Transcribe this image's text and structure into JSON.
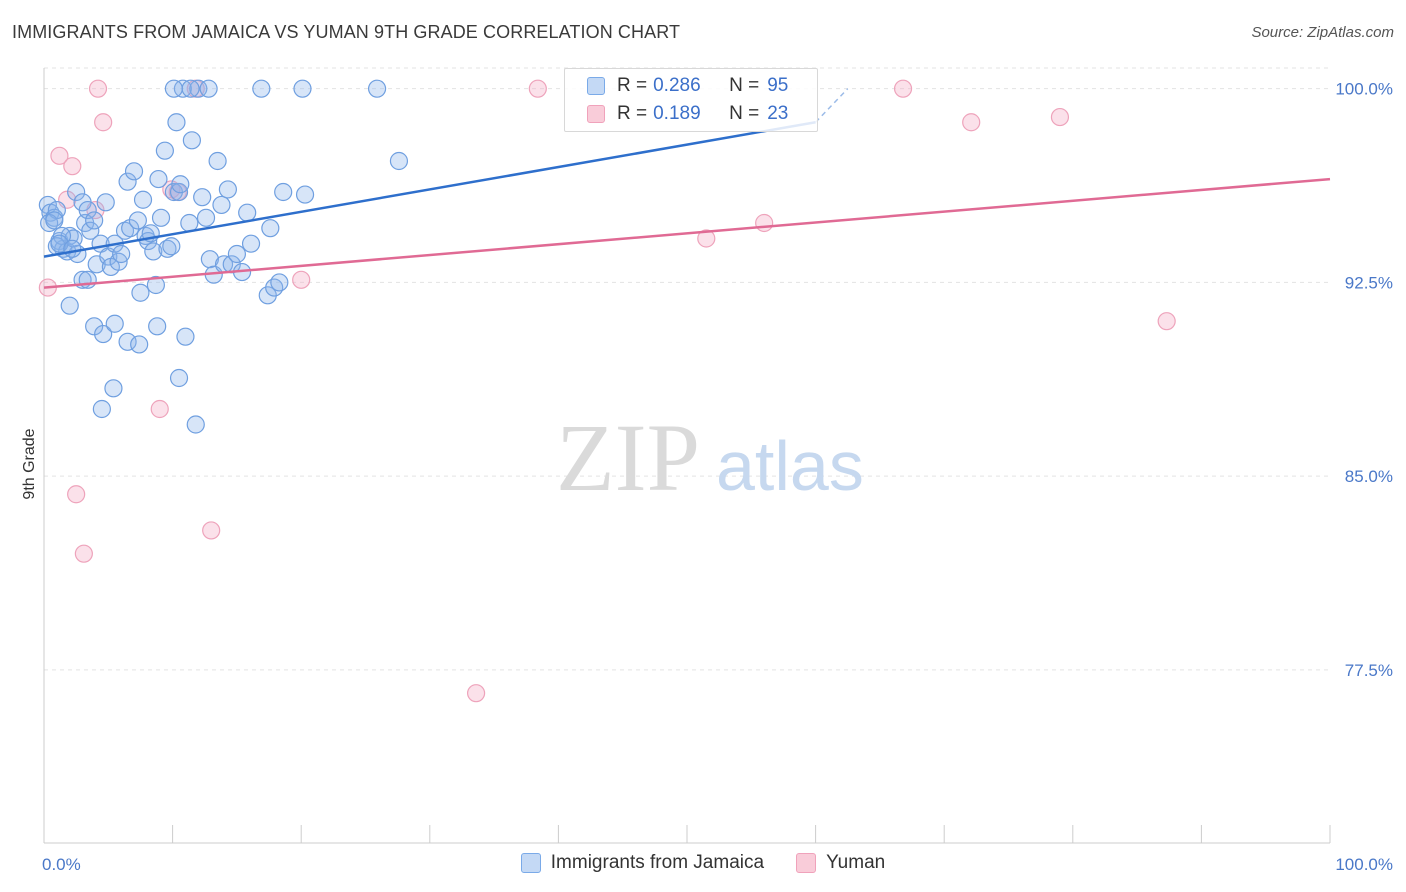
{
  "header": {
    "title": "IMMIGRANTS FROM JAMAICA VS YUMAN 9TH GRADE CORRELATION CHART",
    "source": "Source: ZipAtlas.com"
  },
  "watermark": {
    "part1": "ZIP",
    "part2": "atlas"
  },
  "legend": {
    "rows": [
      {
        "r_label": "R =",
        "r_value": "0.286",
        "n_label": "N =",
        "n_value": "95"
      },
      {
        "r_label": "R =",
        "r_value": "0.189",
        "n_label": "N =",
        "n_value": "23"
      }
    ]
  },
  "bottom_legend": {
    "items": [
      {
        "label": "Immigrants from Jamaica"
      },
      {
        "label": "Yuman"
      }
    ]
  },
  "chart_data": {
    "type": "scatter",
    "title": "IMMIGRANTS FROM JAMAICA VS YUMAN 9TH GRADE CORRELATION CHART",
    "xlabel": "",
    "ylabel": "9th Grade",
    "xlim": [
      0,
      100
    ],
    "ylim": [
      70.8,
      100.8
    ],
    "x_tick_labels": [
      "0.0%",
      "100.0%"
    ],
    "y_ticks": [
      {
        "value": 100.0,
        "label": "100.0%"
      },
      {
        "value": 92.5,
        "label": "92.5%"
      },
      {
        "value": 85.0,
        "label": "85.0%"
      },
      {
        "value": 77.5,
        "label": "77.5%"
      }
    ],
    "colors": {
      "series1": "#7aaae8",
      "series1_line": "#2e6fcc",
      "series2": "#f0a2bb",
      "series2_line": "#e06a94"
    },
    "series": [
      {
        "name": "Immigrants from Jamaica",
        "R": 0.286,
        "N": 95,
        "trend": {
          "x0": 0,
          "y0": 93.5,
          "x1": 60,
          "y1": 98.7,
          "dashed_to_x": 62.5,
          "dashed_to_y": 100.0
        },
        "points": [
          [
            0.3,
            95.5
          ],
          [
            0.5,
            95.2
          ],
          [
            0.8,
            95.0
          ],
          [
            1.0,
            95.3
          ],
          [
            0.4,
            94.8
          ],
          [
            1.2,
            94.1
          ],
          [
            0.8,
            94.9
          ],
          [
            1.5,
            93.8
          ],
          [
            1.8,
            93.7
          ],
          [
            2.0,
            94.3
          ],
          [
            2.3,
            94.2
          ],
          [
            1.4,
            94.3
          ],
          [
            2.5,
            96.0
          ],
          [
            3.0,
            95.6
          ],
          [
            3.2,
            94.8
          ],
          [
            3.4,
            95.3
          ],
          [
            3.6,
            94.5
          ],
          [
            3.9,
            94.9
          ],
          [
            2.6,
            93.6
          ],
          [
            3.0,
            92.6
          ],
          [
            3.4,
            92.6
          ],
          [
            4.1,
            93.2
          ],
          [
            4.4,
            94.0
          ],
          [
            4.8,
            95.6
          ],
          [
            5.0,
            93.5
          ],
          [
            5.2,
            93.1
          ],
          [
            5.5,
            94.0
          ],
          [
            5.8,
            93.3
          ],
          [
            6.0,
            93.6
          ],
          [
            6.3,
            94.5
          ],
          [
            6.5,
            96.4
          ],
          [
            6.7,
            94.6
          ],
          [
            7.0,
            96.8
          ],
          [
            7.3,
            94.9
          ],
          [
            7.5,
            92.1
          ],
          [
            7.7,
            95.7
          ],
          [
            7.9,
            94.3
          ],
          [
            8.1,
            94.1
          ],
          [
            8.3,
            94.4
          ],
          [
            8.5,
            93.7
          ],
          [
            8.7,
            92.4
          ],
          [
            8.9,
            96.5
          ],
          [
            9.1,
            95.0
          ],
          [
            9.4,
            97.6
          ],
          [
            9.6,
            93.8
          ],
          [
            9.9,
            93.9
          ],
          [
            10.1,
            96.0
          ],
          [
            10.3,
            98.7
          ],
          [
            10.5,
            96.0
          ],
          [
            10.8,
            100.0
          ],
          [
            11.0,
            90.4
          ],
          [
            11.3,
            94.8
          ],
          [
            11.5,
            98.0
          ],
          [
            11.8,
            87.0
          ],
          [
            12.0,
            100.0
          ],
          [
            12.3,
            95.8
          ],
          [
            12.6,
            95.0
          ],
          [
            12.9,
            93.4
          ],
          [
            13.2,
            92.8
          ],
          [
            13.5,
            97.2
          ],
          [
            13.8,
            95.5
          ],
          [
            14.0,
            93.2
          ],
          [
            14.3,
            96.1
          ],
          [
            14.6,
            93.2
          ],
          [
            15.0,
            93.6
          ],
          [
            15.4,
            92.9
          ],
          [
            15.8,
            95.2
          ],
          [
            16.1,
            94.0
          ],
          [
            16.9,
            100.0
          ],
          [
            17.4,
            92.0
          ],
          [
            17.6,
            94.6
          ],
          [
            17.9,
            92.3
          ],
          [
            18.3,
            92.5
          ],
          [
            18.6,
            96.0
          ],
          [
            20.1,
            100.0
          ],
          [
            25.9,
            100.0
          ],
          [
            27.6,
            97.2
          ],
          [
            10.1,
            100.0
          ],
          [
            3.9,
            90.8
          ],
          [
            4.6,
            90.5
          ],
          [
            6.5,
            90.2
          ],
          [
            7.4,
            90.1
          ],
          [
            8.8,
            90.8
          ],
          [
            5.5,
            90.9
          ],
          [
            5.4,
            88.4
          ],
          [
            4.5,
            87.6
          ],
          [
            2.0,
            91.6
          ],
          [
            1.0,
            93.9
          ],
          [
            1.2,
            94.0
          ],
          [
            2.2,
            93.8
          ],
          [
            10.5,
            88.8
          ],
          [
            10.6,
            96.3
          ],
          [
            11.4,
            100.0
          ],
          [
            12.8,
            100.0
          ],
          [
            20.3,
            95.9
          ]
        ]
      },
      {
        "name": "Yuman",
        "R": 0.189,
        "N": 23,
        "trend": {
          "x0": 0,
          "y0": 92.3,
          "x1": 100,
          "y1": 96.5
        },
        "points": [
          [
            0.3,
            92.3
          ],
          [
            1.2,
            97.4
          ],
          [
            1.8,
            95.7
          ],
          [
            2.2,
            97.0
          ],
          [
            2.5,
            84.3
          ],
          [
            3.1,
            82.0
          ],
          [
            4.0,
            95.3
          ],
          [
            4.2,
            100.0
          ],
          [
            4.6,
            98.7
          ],
          [
            9.0,
            87.6
          ],
          [
            9.9,
            96.1
          ],
          [
            10.4,
            96.0
          ],
          [
            11.8,
            100.0
          ],
          [
            13.0,
            82.9
          ],
          [
            20.0,
            92.6
          ],
          [
            33.6,
            76.6
          ],
          [
            38.4,
            100.0
          ],
          [
            51.5,
            94.2
          ],
          [
            56.0,
            94.8
          ],
          [
            66.8,
            100.0
          ],
          [
            72.1,
            98.7
          ],
          [
            79.0,
            98.9
          ],
          [
            87.3,
            91.0
          ]
        ]
      }
    ]
  }
}
